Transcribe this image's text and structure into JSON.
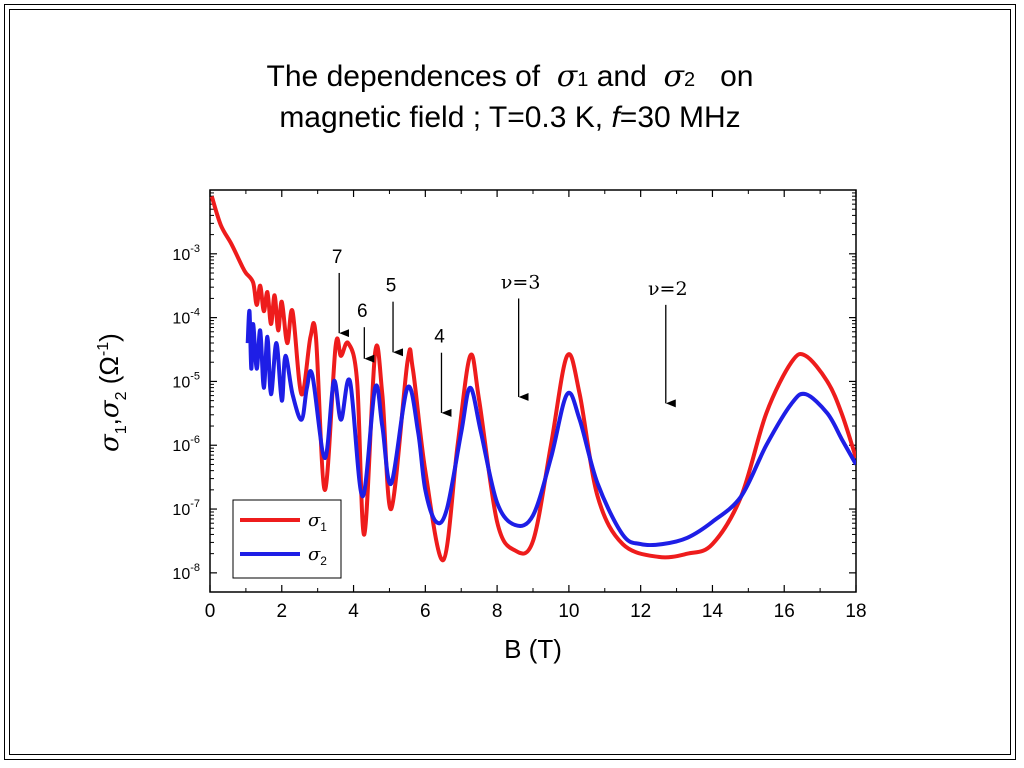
{
  "title": {
    "line1_a": "The dependences of",
    "sigma": "σ",
    "sub1": "1",
    "and": "and",
    "sub2": "2",
    "line1_b": "on",
    "line2_a": "magnetic field ; T=0.3 K,",
    "line2_f": "f",
    "line2_b": "=30 MHz"
  },
  "chart_data": {
    "type": "line",
    "xlabel": "B (T)",
    "ylabel": {
      "sigma": "σ",
      "sub1": "1",
      "sub2": "2",
      "unit": "(Ω",
      "exp": "-1",
      "close": ")"
    },
    "xlim": [
      0,
      18
    ],
    "ylim_log10": [
      -8.3,
      -2.0
    ],
    "yscale": "log",
    "xticks": [
      0,
      2,
      4,
      6,
      8,
      10,
      12,
      14,
      16,
      18
    ],
    "yticks": [
      {
        "base": "10",
        "exp": "-3",
        "log10": -3
      },
      {
        "base": "10",
        "exp": "-4",
        "log10": -4
      },
      {
        "base": "10",
        "exp": "-5",
        "log10": -5
      },
      {
        "base": "10",
        "exp": "-6",
        "log10": -6
      },
      {
        "base": "10",
        "exp": "-7",
        "log10": -7
      },
      {
        "base": "10",
        "exp": "-8",
        "log10": -8
      }
    ],
    "legend": {
      "position": "bottom-left"
    },
    "series": [
      {
        "name": "σ1",
        "sub": "1",
        "color": "#ee1c1c",
        "points": [
          [
            0.05,
            -2.1
          ],
          [
            0.3,
            -2.55
          ],
          [
            0.6,
            -2.85
          ],
          [
            0.9,
            -3.2
          ],
          [
            1.0,
            -3.3
          ],
          [
            1.2,
            -3.45
          ],
          [
            1.3,
            -3.8
          ],
          [
            1.4,
            -3.5
          ],
          [
            1.5,
            -3.9
          ],
          [
            1.6,
            -3.6
          ],
          [
            1.7,
            -4.1
          ],
          [
            1.8,
            -3.65
          ],
          [
            1.9,
            -4.2
          ],
          [
            2.0,
            -3.75
          ],
          [
            2.15,
            -4.4
          ],
          [
            2.3,
            -3.9
          ],
          [
            2.55,
            -5.2
          ],
          [
            2.8,
            -4.3
          ],
          [
            2.95,
            -4.3
          ],
          [
            3.2,
            -6.7
          ],
          [
            3.5,
            -4.45
          ],
          [
            3.65,
            -4.6
          ],
          [
            3.85,
            -4.4
          ],
          [
            4.1,
            -5.0
          ],
          [
            4.3,
            -7.4
          ],
          [
            4.6,
            -4.55
          ],
          [
            4.8,
            -5.2
          ],
          [
            5.05,
            -7.0
          ],
          [
            5.5,
            -4.7
          ],
          [
            5.65,
            -4.8
          ],
          [
            6.0,
            -6.4
          ],
          [
            6.5,
            -7.8
          ],
          [
            6.9,
            -6.0
          ],
          [
            7.25,
            -4.6
          ],
          [
            7.5,
            -5.3
          ],
          [
            8.0,
            -7.2
          ],
          [
            8.5,
            -7.65
          ],
          [
            9.0,
            -7.5
          ],
          [
            9.5,
            -6.0
          ],
          [
            9.95,
            -4.6
          ],
          [
            10.3,
            -5.2
          ],
          [
            10.8,
            -6.8
          ],
          [
            11.5,
            -7.55
          ],
          [
            12.5,
            -7.75
          ],
          [
            13.3,
            -7.7
          ],
          [
            14.0,
            -7.55
          ],
          [
            14.8,
            -6.8
          ],
          [
            15.5,
            -5.5
          ],
          [
            16.2,
            -4.7
          ],
          [
            16.6,
            -4.6
          ],
          [
            17.2,
            -5.0
          ],
          [
            17.6,
            -5.5
          ],
          [
            18.0,
            -6.2
          ]
        ]
      },
      {
        "name": "σ2",
        "sub": "2",
        "color": "#1e1ee6",
        "points": [
          [
            1.05,
            -4.4
          ],
          [
            1.1,
            -3.9
          ],
          [
            1.15,
            -4.8
          ],
          [
            1.2,
            -4.1
          ],
          [
            1.3,
            -4.8
          ],
          [
            1.4,
            -4.2
          ],
          [
            1.5,
            -5.1
          ],
          [
            1.6,
            -4.3
          ],
          [
            1.7,
            -5.2
          ],
          [
            1.85,
            -4.4
          ],
          [
            2.0,
            -5.3
          ],
          [
            2.1,
            -4.6
          ],
          [
            2.3,
            -5.2
          ],
          [
            2.55,
            -5.6
          ],
          [
            2.7,
            -5.1
          ],
          [
            2.85,
            -4.9
          ],
          [
            3.2,
            -6.2
          ],
          [
            3.45,
            -5.0
          ],
          [
            3.65,
            -5.6
          ],
          [
            3.9,
            -5.0
          ],
          [
            4.25,
            -6.8
          ],
          [
            4.6,
            -5.1
          ],
          [
            4.8,
            -5.7
          ],
          [
            5.05,
            -6.6
          ],
          [
            5.5,
            -5.1
          ],
          [
            5.8,
            -5.8
          ],
          [
            6.0,
            -6.7
          ],
          [
            6.3,
            -7.2
          ],
          [
            6.6,
            -7.0
          ],
          [
            7.0,
            -5.8
          ],
          [
            7.25,
            -5.1
          ],
          [
            7.55,
            -5.8
          ],
          [
            8.0,
            -6.9
          ],
          [
            8.5,
            -7.25
          ],
          [
            9.0,
            -7.1
          ],
          [
            9.5,
            -6.2
          ],
          [
            9.95,
            -5.2
          ],
          [
            10.3,
            -5.6
          ],
          [
            10.8,
            -6.6
          ],
          [
            11.5,
            -7.4
          ],
          [
            12.0,
            -7.55
          ],
          [
            12.6,
            -7.55
          ],
          [
            13.3,
            -7.45
          ],
          [
            14.0,
            -7.2
          ],
          [
            14.8,
            -6.8
          ],
          [
            15.5,
            -6.0
          ],
          [
            16.2,
            -5.35
          ],
          [
            16.6,
            -5.2
          ],
          [
            17.2,
            -5.5
          ],
          [
            17.6,
            -5.9
          ],
          [
            18.0,
            -6.3
          ]
        ]
      }
    ],
    "annotations": [
      {
        "text": "7",
        "x": 3.6,
        "y_top": -3.3,
        "y_tip": -4.4
      },
      {
        "text": "6",
        "x": 4.3,
        "y_top": -4.15,
        "y_tip": -4.8
      },
      {
        "text": "5",
        "x": 5.1,
        "y_top": -3.75,
        "y_tip": -4.7
      },
      {
        "text": "4",
        "x": 6.45,
        "y_top": -4.55,
        "y_tip": -5.65
      },
      {
        "text": "ν=3",
        "x": 8.6,
        "y_top": -3.7,
        "y_tip": -5.4
      },
      {
        "text": "ν=2",
        "x": 12.7,
        "y_top": -3.8,
        "y_tip": -5.5
      }
    ]
  }
}
